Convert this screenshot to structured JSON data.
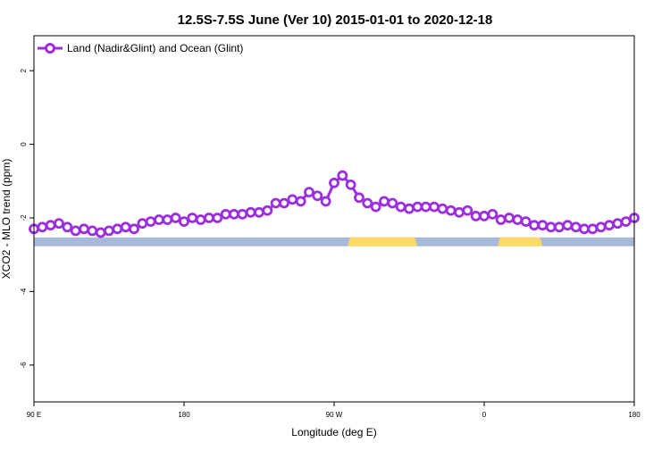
{
  "chart_data": {
    "type": "line",
    "title": "12.5S-7.5S June (Ver 10)   2015-01-01 to 2020-12-18",
    "xlabel": "Longitude (deg E)",
    "ylabel": "XCO2 - MLO trend (ppm)",
    "xlim": [
      90,
      450
    ],
    "ylim": [
      -7.0,
      2.95
    ],
    "x_ticks": [
      {
        "value": 90,
        "label": "90 E"
      },
      {
        "value": 180,
        "label": "180"
      },
      {
        "value": 270,
        "label": "90 W"
      },
      {
        "value": 360,
        "label": "0"
      },
      {
        "value": 450,
        "label": "180"
      }
    ],
    "y_ticks": [
      {
        "value": 2,
        "label": "2"
      },
      {
        "value": 0,
        "label": "0"
      },
      {
        "value": -2,
        "label": "-2"
      },
      {
        "value": -4,
        "label": "-4"
      },
      {
        "value": -6,
        "label": "-6"
      }
    ],
    "grid": false,
    "legend_position": "top-left",
    "series": [
      {
        "name": "Land (Nadir&Glint) and Ocean (Glint)",
        "color": "#9b2fe0",
        "x": [
          90,
          95,
          100,
          105,
          110,
          115,
          120,
          125,
          130,
          135,
          140,
          145,
          150,
          155,
          160,
          165,
          170,
          175,
          180,
          185,
          190,
          195,
          200,
          205,
          210,
          215,
          220,
          225,
          230,
          235,
          240,
          245,
          250,
          255,
          260,
          265,
          270,
          275,
          280,
          285,
          290,
          295,
          300,
          305,
          310,
          315,
          320,
          325,
          330,
          335,
          340,
          345,
          350,
          355,
          360,
          365,
          370,
          375,
          380,
          385,
          390,
          395,
          400,
          405,
          410,
          415,
          420,
          425,
          430,
          435,
          440,
          445,
          450
        ],
        "y": [
          -2.3,
          -2.25,
          -2.2,
          -2.15,
          -2.25,
          -2.35,
          -2.3,
          -2.35,
          -2.4,
          -2.35,
          -2.3,
          -2.25,
          -2.3,
          -2.15,
          -2.1,
          -2.05,
          -2.05,
          -2.0,
          -2.1,
          -2.0,
          -2.05,
          -2.0,
          -2.0,
          -1.9,
          -1.9,
          -1.9,
          -1.85,
          -1.85,
          -1.8,
          -1.6,
          -1.6,
          -1.5,
          -1.55,
          -1.3,
          -1.4,
          -1.55,
          -1.05,
          -0.85,
          -1.1,
          -1.45,
          -1.6,
          -1.7,
          -1.55,
          -1.6,
          -1.7,
          -1.75,
          -1.7,
          -1.7,
          -1.7,
          -1.75,
          -1.8,
          -1.85,
          -1.8,
          -1.95,
          -1.95,
          -1.9,
          -2.05,
          -2.0,
          -2.05,
          -2.1,
          -2.2,
          -2.2,
          -2.25,
          -2.25,
          -2.2,
          -2.25,
          -2.3,
          -2.3,
          -2.25,
          -2.2,
          -2.15,
          -2.1,
          -2.0
        ]
      }
    ],
    "surface_band": {
      "y_center": -2.65,
      "ocean_color": "#a8b8d8",
      "land_color": "#ffd966",
      "land_segments": [
        [
          278,
          320
        ],
        [
          368,
          395
        ]
      ]
    }
  }
}
